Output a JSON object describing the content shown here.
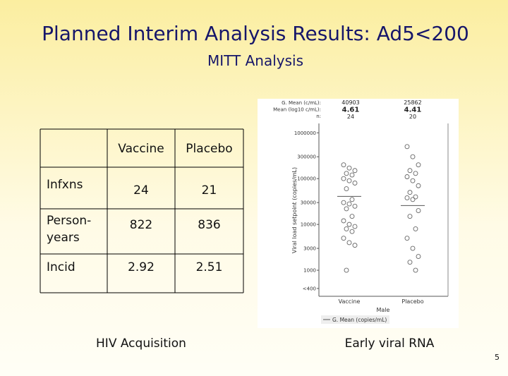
{
  "header": {
    "title": "Planned Interim Analysis Results: Ad5<200",
    "subtitle": "MITT Analysis"
  },
  "table": {
    "columns": [
      "Vaccine",
      "Placebo"
    ],
    "rows": [
      [
        "Infxns",
        24,
        21
      ],
      [
        "Person-years",
        822,
        836
      ],
      [
        "Incid",
        2.92,
        2.51
      ]
    ]
  },
  "captions": {
    "left": "HIV Acquisition",
    "right": "Early viral RNA"
  },
  "page_number": 5,
  "plot": {
    "type": "dot",
    "y_label": "Viral load setpoint (copies/mL)",
    "x_label": "Male",
    "legend": "G. Mean (copies/mL)",
    "log_scale": true,
    "ylim": [
      270,
      1600000
    ],
    "yticks": [
      1000000,
      300000,
      100000,
      30000,
      10000,
      3000,
      1000,
      {
        "value": 400,
        "label": "<400"
      }
    ],
    "categories": [
      "Vaccine",
      "Placebo"
    ],
    "stats": [
      {
        "label": "G. Mean (c/mL):",
        "values": [
          40903,
          25862
        ]
      },
      {
        "label": "Mean (log10 c/mL):",
        "values": [
          4.61,
          4.41
        ]
      },
      {
        "label": "n:",
        "values": [
          24,
          20
        ]
      }
    ],
    "series": [
      {
        "name": "Vaccine",
        "values": [
          200000,
          170000,
          150000,
          130000,
          120000,
          100000,
          90000,
          80000,
          60000,
          35000,
          30000,
          28000,
          25000,
          22000,
          15000,
          12000,
          10000,
          9000,
          8000,
          7000,
          5000,
          4000,
          3500,
          1000
        ]
      },
      {
        "name": "Placebo",
        "values": [
          500000,
          300000,
          200000,
          150000,
          130000,
          110000,
          90000,
          70000,
          50000,
          40000,
          38000,
          35000,
          20000,
          15000,
          8000,
          5000,
          3000,
          2000,
          1500,
          1000
        ]
      }
    ]
  }
}
